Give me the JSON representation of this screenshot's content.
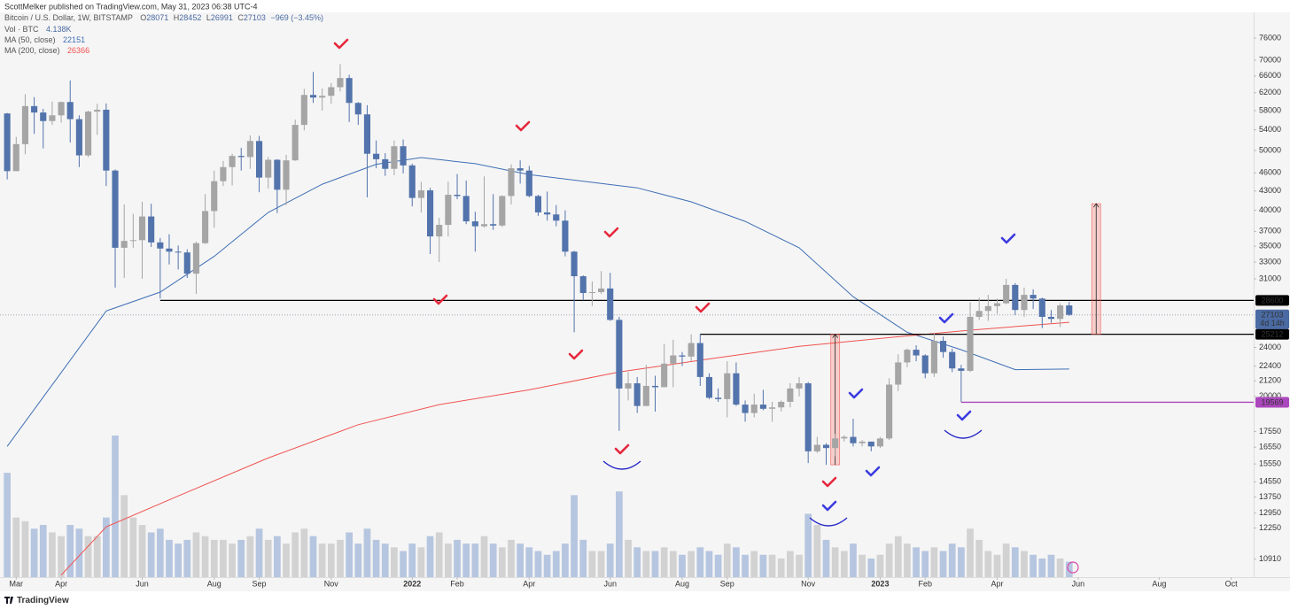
{
  "header": "ScottMelker published on TradingView.com, May 31, 2023 06:38 UTC-4",
  "footer": "TradingView",
  "chart_data": {
    "type": "candlestick",
    "legend": {
      "symbol": "Bitcoin / U.S. Dollar, 1W, BITSTAMP",
      "ohlc_letters": [
        "O",
        "H",
        "L",
        "C"
      ],
      "change": "−969 (−3.45%)",
      "countdown": "4d 14h"
    },
    "up_color": "#a5a5a5",
    "down_color": "#5273ab",
    "open": [
      57400,
      46300,
      51200,
      59000,
      57600,
      55800,
      57000,
      59900,
      56200,
      49100,
      57800,
      58200,
      46400,
      34800,
      35700,
      35800,
      39100,
      35500,
      34700,
      34300,
      34200,
      31600,
      35400,
      39900,
      44600,
      47000,
      49000,
      48800,
      51800,
      45200,
      48300,
      43200,
      48200,
      55000,
      61500,
      60900,
      61300,
      63300,
      65500,
      59700,
      57200,
      49400,
      48400,
      46700,
      50800,
      47300,
      41900,
      43100,
      36300,
      37900,
      42400,
      42200,
      38400,
      37700,
      38000,
      37800,
      42200,
      46800,
      46400,
      42200,
      39700,
      39400,
      38500,
      34300,
      31300,
      29400,
      29500,
      29900,
      26600,
      20600,
      21000,
      19300,
      20800,
      20700,
      22600,
      23300,
      23200,
      24400,
      21500,
      19900,
      19800,
      21800,
      19400,
      18800,
      19400,
      19100,
      19200,
      19600,
      20600,
      21000,
      16300,
      16700,
      16500,
      17100,
      17200,
      16800,
      16900,
      16600,
      17100,
      20900,
      22700,
      23800,
      23300,
      21800,
      24600,
      23600,
      22200,
      22000,
      26900,
      27500,
      28000,
      28300,
      30300,
      27600,
      29200,
      28800,
      26900,
      26700,
      28071
    ],
    "high": [
      57500,
      52600,
      61700,
      61000,
      58400,
      60000,
      60000,
      64900,
      57000,
      58000,
      59500,
      59600,
      46600,
      40900,
      39500,
      41300,
      41000,
      36100,
      36600,
      35100,
      34600,
      35600,
      42500,
      46400,
      48100,
      49400,
      50500,
      52900,
      52800,
      48800,
      48400,
      49200,
      56100,
      62900,
      67000,
      63000,
      64300,
      69000,
      66300,
      59900,
      59200,
      51900,
      49500,
      51900,
      52100,
      47600,
      44500,
      43500,
      38900,
      44500,
      45800,
      44700,
      39800,
      45400,
      42500,
      42300,
      47500,
      48200,
      47200,
      42400,
      42900,
      40800,
      40000,
      34400,
      31400,
      30700,
      31900,
      31700,
      26900,
      21900,
      21500,
      22500,
      21600,
      24300,
      24700,
      23600,
      25200,
      25200,
      21800,
      20600,
      22800,
      22700,
      19700,
      20200,
      20500,
      19600,
      19700,
      21000,
      21500,
      21100,
      17200,
      16800,
      17400,
      17300,
      18400,
      17000,
      16900,
      17200,
      21400,
      23400,
      23900,
      24200,
      23400,
      25300,
      25000,
      23900,
      22500,
      28400,
      28900,
      29200,
      28800,
      31000,
      30500,
      30000,
      29800,
      28900,
      27600,
      28300,
      28452
    ],
    "low": [
      44900,
      46300,
      49300,
      53200,
      50400,
      55000,
      55500,
      51500,
      47000,
      48800,
      53000,
      43800,
      30000,
      31100,
      34800,
      31000,
      34900,
      28800,
      32700,
      32100,
      31100,
      29300,
      35300,
      37500,
      43800,
      43900,
      46400,
      46700,
      42800,
      43400,
      39600,
      40800,
      48100,
      53900,
      59700,
      58000,
      59500,
      62300,
      55600,
      55000,
      42000,
      46800,
      45500,
      45600,
      45900,
      40600,
      39700,
      34000,
      33000,
      36300,
      41700,
      38000,
      34300,
      37500,
      37200,
      37600,
      40900,
      44200,
      42000,
      39200,
      38500,
      37700,
      33700,
      25400,
      28600,
      28000,
      29300,
      26500,
      17600,
      19700,
      18800,
      19300,
      18900,
      20700,
      20700,
      22400,
      22800,
      20800,
      19800,
      19600,
      18500,
      19300,
      18200,
      18500,
      19000,
      18200,
      18900,
      19200,
      20000,
      15600,
      16200,
      15500,
      16000,
      16900,
      16600,
      16600,
      16300,
      16500,
      17000,
      20400,
      22300,
      22800,
      21400,
      21500,
      23100,
      21900,
      19600,
      21900,
      26600,
      26500,
      27200,
      28200,
      27100,
      26900,
      27700,
      25800,
      26300,
      25900,
      26991
    ],
    "close": [
      46300,
      51200,
      59000,
      57600,
      55800,
      57000,
      59900,
      56200,
      49100,
      57800,
      58200,
      46400,
      34800,
      35700,
      35800,
      39100,
      35500,
      34700,
      34300,
      34200,
      31600,
      35400,
      39900,
      44600,
      47000,
      49000,
      48800,
      51800,
      45200,
      48300,
      43200,
      48200,
      55000,
      61500,
      60900,
      61300,
      63300,
      65500,
      59700,
      57200,
      49400,
      48400,
      46700,
      50800,
      47300,
      41900,
      43100,
      36300,
      37900,
      42400,
      42200,
      38400,
      37700,
      38000,
      37800,
      42200,
      46800,
      46400,
      42200,
      39700,
      39400,
      38500,
      34300,
      31300,
      29400,
      29500,
      29900,
      26600,
      20600,
      21000,
      19300,
      20800,
      20700,
      22600,
      23300,
      23200,
      24400,
      21500,
      19900,
      19800,
      21800,
      19400,
      18800,
      19400,
      19100,
      19200,
      19600,
      20600,
      21000,
      16300,
      16700,
      16500,
      17100,
      17200,
      16800,
      16900,
      16600,
      17100,
      20900,
      22700,
      23800,
      23300,
      21800,
      24600,
      23600,
      22200,
      22000,
      26900,
      27500,
      28000,
      28300,
      30300,
      27600,
      29200,
      28800,
      26900,
      26700,
      28072,
      27103
    ],
    "volume": {
      "name": "Vol · BTC",
      "up_color": "#d2d2d2",
      "down_color": "#b6c6e0",
      "values": [
        28,
        16,
        15,
        13,
        14,
        12,
        11,
        14,
        13,
        11,
        11,
        16,
        38,
        22,
        16,
        14,
        12,
        13,
        10,
        9,
        10,
        12,
        11,
        10,
        10,
        9,
        10,
        11,
        13,
        10,
        11,
        9,
        12,
        13,
        11,
        9,
        9,
        10,
        12,
        9,
        13,
        10,
        9,
        8,
        7,
        9,
        8,
        11,
        12,
        9,
        10,
        9,
        9,
        11,
        9,
        8,
        10,
        9,
        8,
        7,
        6,
        7,
        9,
        22,
        10,
        7,
        7,
        9,
        23,
        10,
        8,
        7,
        7,
        8,
        7,
        6,
        7,
        8,
        7,
        6,
        9,
        8,
        6,
        7,
        6,
        6,
        5,
        7,
        6,
        17,
        14,
        10,
        8,
        7,
        9,
        6,
        5,
        6,
        9,
        11,
        9,
        8,
        7,
        8,
        7,
        9,
        8,
        13,
        10,
        7,
        6,
        9,
        8,
        7,
        6,
        5,
        6,
        5,
        4.138
      ],
      "last_label": "4.138K"
    },
    "ma": [
      {
        "name": "MA (50, close)",
        "color": "#3f6fb5",
        "x": [
          0,
          11,
          17,
          23,
          29,
          35,
          41,
          46,
          52,
          58,
          64,
          70,
          76,
          82,
          88,
          94,
          100,
          106,
          112,
          118
        ],
        "values": [
          16600,
          27500,
          29500,
          33700,
          39700,
          44100,
          47500,
          48700,
          47600,
          45700,
          44600,
          43500,
          41300,
          38400,
          34800,
          29000,
          25400,
          23800,
          22100,
          22151
        ]
      },
      {
        "name": "MA (200, close)",
        "color": "#ef5350",
        "x": [
          6,
          11,
          19,
          29,
          39,
          48,
          58,
          68,
          78,
          88,
          98,
          107,
          118
        ],
        "values": [
          10280,
          12300,
          13800,
          15900,
          18000,
          19400,
          20500,
          21900,
          23000,
          24100,
          24900,
          25600,
          26366
        ]
      }
    ],
    "levels": [
      {
        "value": 28600,
        "from": 17,
        "color": "#000000"
      },
      {
        "value": 25212,
        "from": 77,
        "color": "#000000"
      },
      {
        "value": 19569,
        "from": 106,
        "color": "#ab47bc"
      }
    ],
    "measures": [
      {
        "x": 92,
        "low": 15500,
        "high": 25212
      },
      {
        "x": 121,
        "low": 25212,
        "high": 41000
      }
    ],
    "current_color": "#4a6aa3",
    "xlim": [
      -0.8,
      138.5
    ],
    "xticks": [
      {
        "value": 1,
        "label": "Mar"
      },
      {
        "value": 6,
        "label": "Apr"
      },
      {
        "value": 15,
        "label": "Jun"
      },
      {
        "value": 23,
        "label": "Aug"
      },
      {
        "value": 28,
        "label": "Sep"
      },
      {
        "value": 36,
        "label": "Nov"
      },
      {
        "value": 45,
        "label": "2022"
      },
      {
        "value": 50,
        "label": "Feb"
      },
      {
        "value": 58,
        "label": "Apr"
      },
      {
        "value": 67,
        "label": "Jun"
      },
      {
        "value": 75,
        "label": "Aug"
      },
      {
        "value": 80,
        "label": "Sep"
      },
      {
        "value": 89,
        "label": "Nov"
      },
      {
        "value": 97,
        "label": "2023"
      },
      {
        "value": 102,
        "label": "Feb"
      },
      {
        "value": 110,
        "label": "Apr"
      },
      {
        "value": 119,
        "label": "Jun"
      },
      {
        "value": 128,
        "label": "Aug"
      },
      {
        "value": 136,
        "label": "Oct"
      }
    ],
    "ylim": [
      10200,
      87600
    ],
    "ylog": true,
    "grid": false,
    "yticks": [
      76000,
      70000,
      66000,
      62000,
      58000,
      54000,
      50000,
      46000,
      43000,
      40000,
      37000,
      35000,
      33000,
      31000,
      24000,
      22400,
      21200,
      20000,
      17550,
      16550,
      15550,
      14550,
      13750,
      12950,
      12250,
      10910
    ]
  }
}
